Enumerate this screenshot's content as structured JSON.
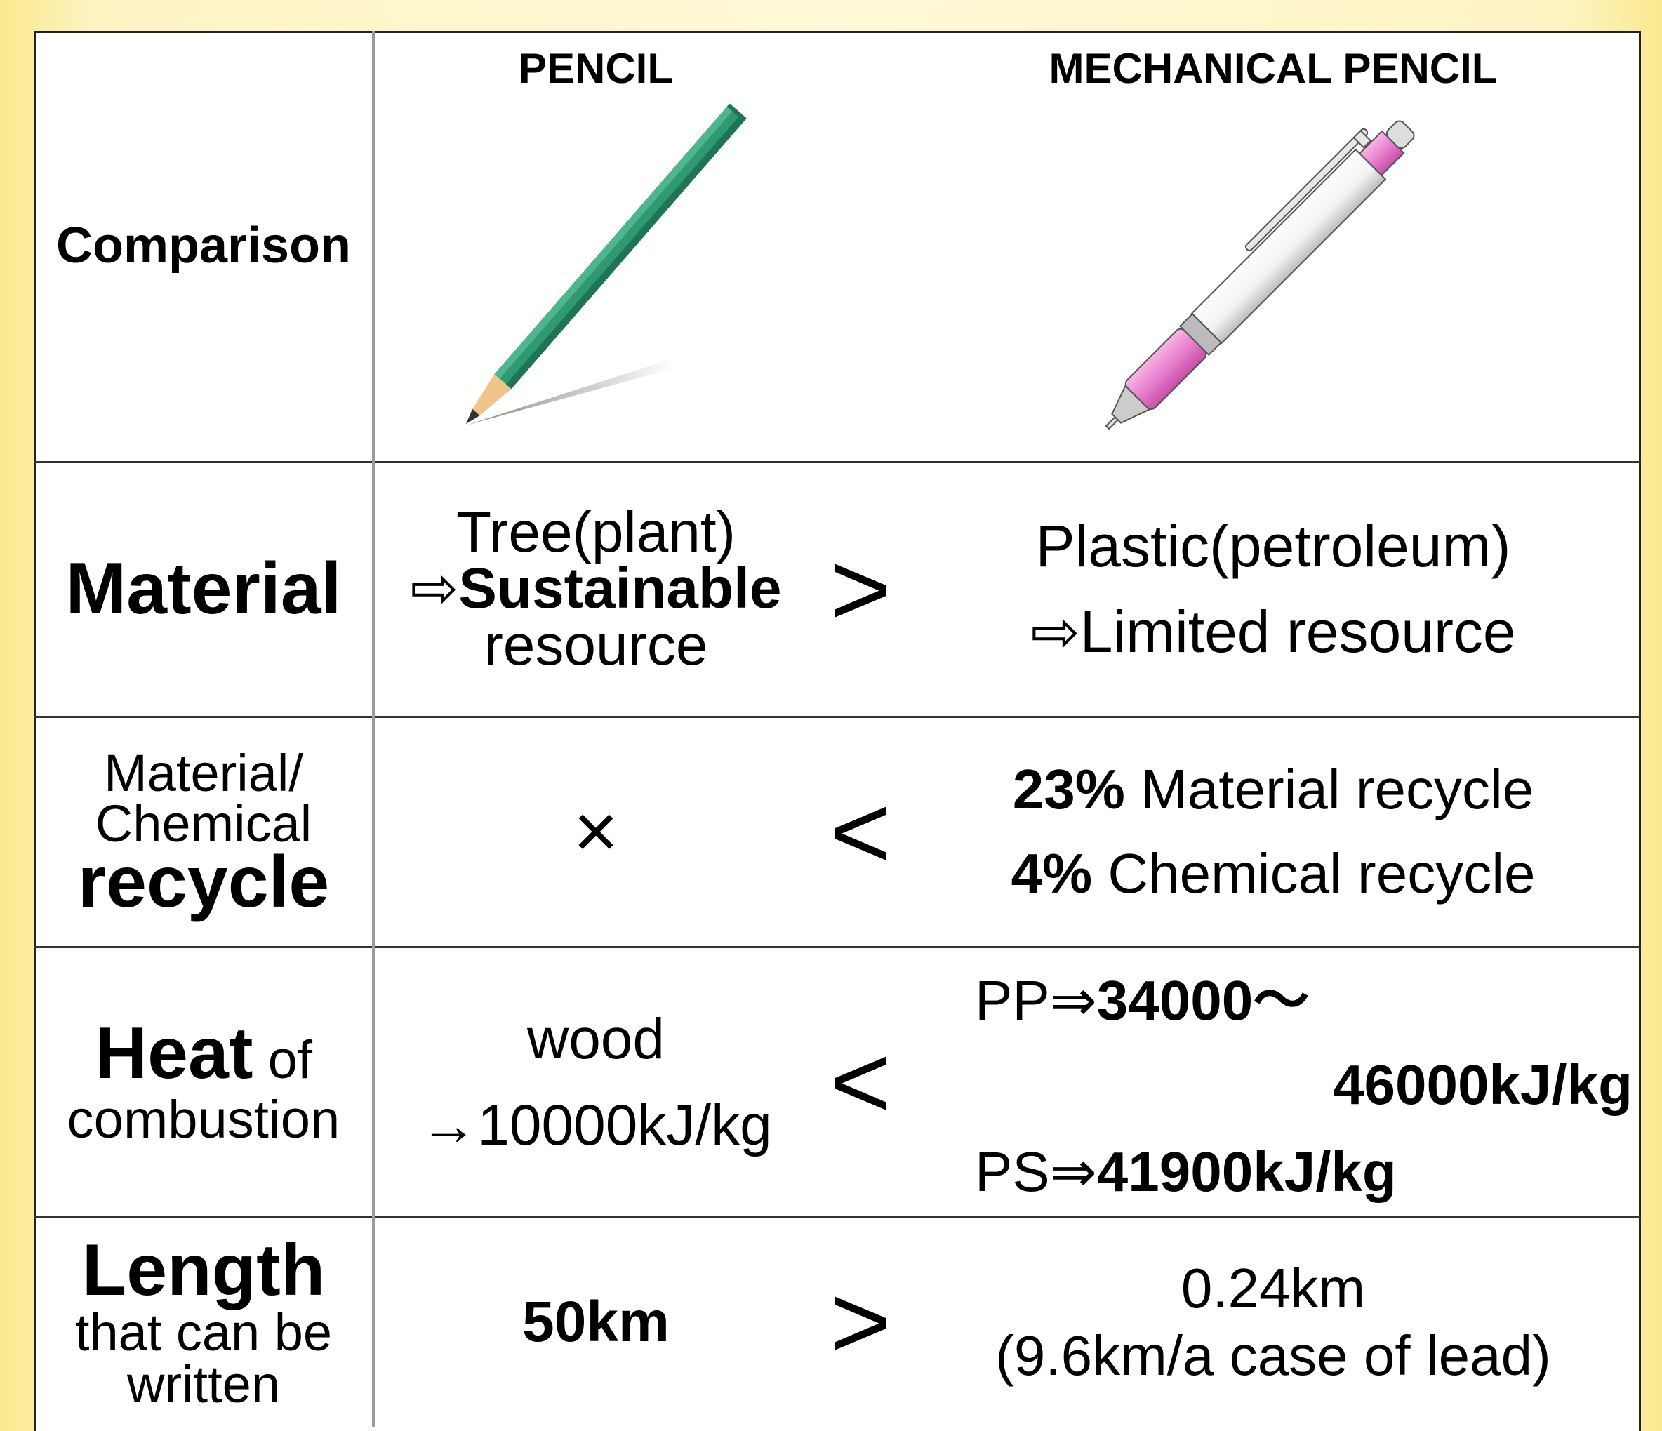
{
  "header": {
    "corner": "Comparison",
    "pencil": "PENCIL",
    "mechanical_pencil": "MECHANICAL PENCIL"
  },
  "rows": [
    {
      "label": [
        "Material"
      ],
      "pencil": [
        "Tree(plant)",
        "⇨",
        "Sustainable",
        "resource"
      ],
      "sign": ">",
      "mechanical_pencil": [
        "Plastic(petroleum)",
        "⇨Limited resource"
      ]
    },
    {
      "label": [
        "Material/",
        "Chemical",
        "recycle"
      ],
      "pencil": [
        "×"
      ],
      "sign": "<",
      "mechanical_pencil": [
        "23%",
        "Material recycle",
        "4%",
        "Chemical recycle"
      ]
    },
    {
      "label": [
        "Heat",
        "of",
        "combustion"
      ],
      "pencil": [
        "wood",
        "→10000kJ/kg"
      ],
      "sign": "<",
      "mechanical_pencil": [
        "PP⇒",
        "34000～",
        "46000kJ/kg",
        "PS⇒",
        "41900kJ/kg"
      ]
    },
    {
      "label": [
        "Length",
        "that can be",
        "written"
      ],
      "pencil": [
        "50km"
      ],
      "sign": ">",
      "mechanical_pencil": [
        "0.24km",
        "(9.6km/a case of lead)"
      ]
    }
  ]
}
